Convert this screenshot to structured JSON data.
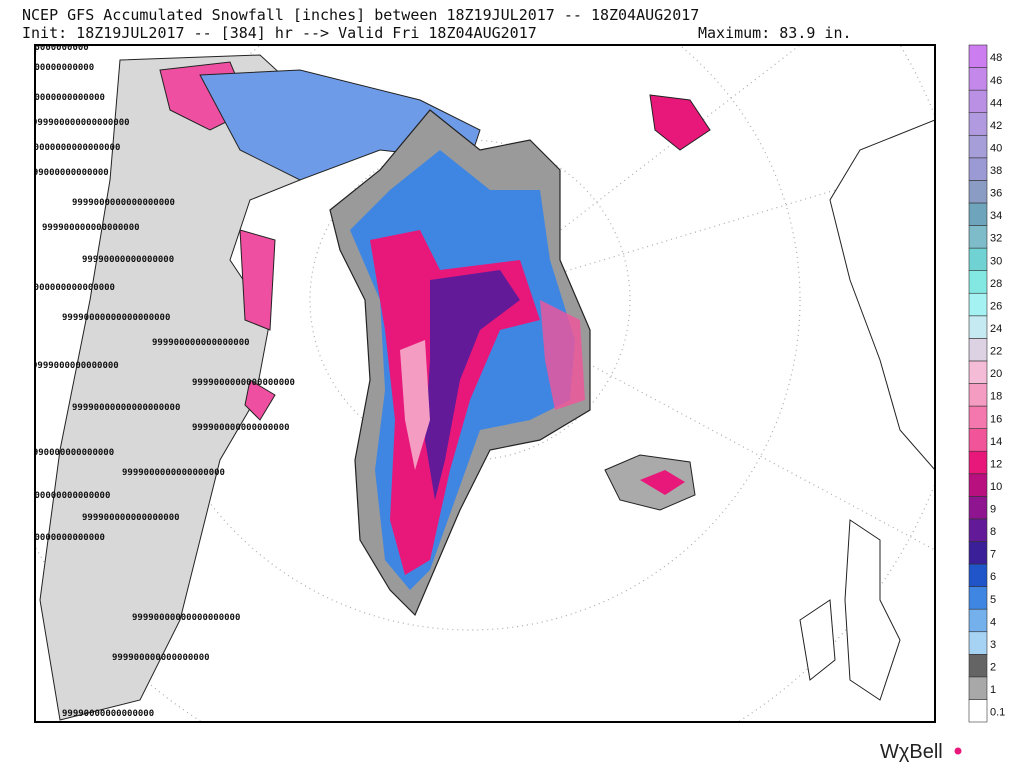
{
  "header": {
    "title": "NCEP GFS Accumulated Snowfall [inches] between 18Z19JUL2017 -- 18Z04AUG2017",
    "subtitle": "Init: 18Z19JUL2017 -- [384] hr --> Valid Fri 18Z04AUG2017",
    "maximum": "Maximum: 83.9 in."
  },
  "colorbar": {
    "levels": [
      0.1,
      1,
      2,
      3,
      4,
      5,
      6,
      7,
      8,
      9,
      10,
      12,
      14,
      16,
      18,
      20,
      22,
      24,
      26,
      28,
      30,
      32,
      34,
      36,
      38,
      40,
      42,
      44,
      46,
      48
    ],
    "colors": [
      "#ffffff",
      "#a8a8a8",
      "#646464",
      "#a6d2f4",
      "#74b0ec",
      "#3f86e2",
      "#1f55c8",
      "#3b1f98",
      "#631a98",
      "#8e1490",
      "#b8107e",
      "#e8187a",
      "#f2549a",
      "#f477ae",
      "#f49cc2",
      "#f4bcd6",
      "#dcd2e4",
      "#c6eaf2",
      "#a4f2f2",
      "#84e8e2",
      "#70d2d2",
      "#7ebcca",
      "#6ea4bc",
      "#8a9cc4",
      "#9c9ad4",
      "#a69ed8",
      "#b29ae0",
      "#ba90e4",
      "#c488ea",
      "#cc7ef0"
    ]
  },
  "map_labels": [
    "9999000000000000",
    "99990000000000000",
    "9999000000000000000",
    "999900000000000000",
    "99990000000000000000",
    "9999000000000000",
    "9999000000000000000",
    "999900000000000000",
    "99990000000000000",
    "9999000000000000000",
    "99990000000000000000",
    "999900000000000000",
    "9999000000000000",
    "9999000000000000000",
    "99990000000000000000",
    "999900000000000000",
    "99990000000000000",
    "9999000000000000000",
    "99990000000000000000",
    "999900000000000000",
    "9999000000000000000",
    "99990000000000000000",
    "999900000000000000",
    "99990000000000000"
  ],
  "logo": "WχBell"
}
